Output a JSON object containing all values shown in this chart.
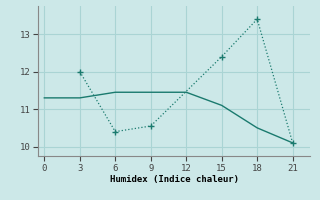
{
  "xlabel": "Humidex (Indice chaleur)",
  "background_color": "#cce8e8",
  "grid_color": "#aad4d4",
  "line_color": "#1a7a6e",
  "line1_x": [
    0,
    3,
    6,
    9,
    12,
    15,
    18,
    21
  ],
  "line1_y": [
    11.3,
    11.3,
    11.45,
    11.45,
    11.45,
    11.1,
    10.5,
    10.1
  ],
  "line2_x": [
    3,
    6,
    9,
    15,
    18,
    21
  ],
  "line2_y": [
    12.0,
    10.4,
    10.55,
    12.4,
    13.4,
    10.1
  ],
  "xlim": [
    -0.5,
    22.5
  ],
  "ylim": [
    9.75,
    13.75
  ],
  "xticks": [
    0,
    3,
    6,
    9,
    12,
    15,
    18,
    21
  ],
  "yticks": [
    10,
    11,
    12,
    13
  ]
}
